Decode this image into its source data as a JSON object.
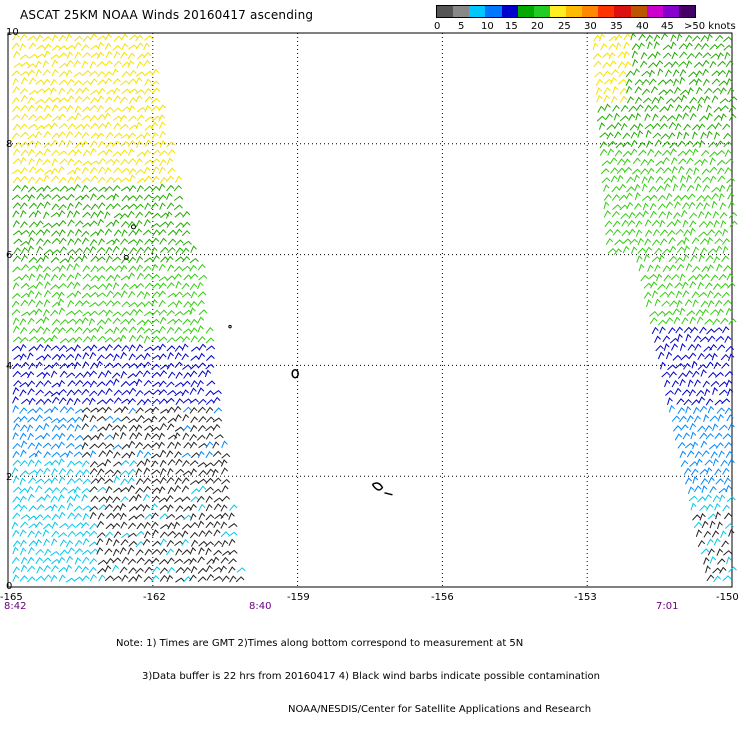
{
  "title": "ASCAT 25KM NOAA Winds 20160417 ascending",
  "scale": {
    "labels": [
      "0",
      "5",
      "10",
      "15",
      "20",
      "25",
      "30",
      "35",
      "40",
      "45",
      ">50 knots"
    ],
    "colors": [
      "#555555",
      "#888888",
      "#00c8ff",
      "#0077ff",
      "#0000cc",
      "#00aa00",
      "#22cc22",
      "#ffee22",
      "#ffbb00",
      "#ff8800",
      "#ff3300",
      "#dd1111",
      "#bb5500",
      "#cc00cc",
      "#8800cc",
      "#440066"
    ]
  },
  "lat_labels": [
    "10",
    "8",
    "6",
    "4",
    "2",
    "0"
  ],
  "lon_labels": [
    "-165",
    "-162",
    "-159",
    "-156",
    "-153",
    "-150"
  ],
  "times": [
    "8:42",
    "8:40",
    "7:01"
  ],
  "notes": {
    "line1": "Note: 1) Times are GMT 2)Times along bottom correspond to measurement at 5N",
    "line2": "3)Data buffer is 22 hrs from 20160417 4) Black wind barbs indicate possible contamination",
    "line3": "NOAA/NESDIS/Center for Satellite Applications and Research"
  },
  "map": {
    "lat_range": [
      0,
      10
    ],
    "lon_range": [
      -165,
      -150
    ],
    "swaths": [
      {
        "name": "west",
        "bands": [
          {
            "lat_from": 7.2,
            "lat_to": 10,
            "color": "#f5e200"
          },
          {
            "lat_from": 5.8,
            "lat_to": 7.2,
            "color": "#22aa00"
          },
          {
            "lat_from": 4.3,
            "lat_to": 5.8,
            "color": "#33cc11"
          },
          {
            "lat_from": 3.3,
            "lat_to": 4.3,
            "color": "#0000cc"
          },
          {
            "lat_from": 2.2,
            "lat_to": 3.3,
            "color": "#0088ff"
          },
          {
            "lat_from": 0,
            "lat_to": 2.2,
            "color": "#00c8ee"
          }
        ]
      },
      {
        "name": "east",
        "bands": [
          {
            "lat_from": 7.8,
            "lat_to": 10,
            "color": "#22aa00"
          },
          {
            "lat_from": 4.6,
            "lat_to": 7.8,
            "color": "#33cc11"
          },
          {
            "lat_from": 3.2,
            "lat_to": 4.6,
            "color": "#0000cc"
          },
          {
            "lat_from": 1.6,
            "lat_to": 3.2,
            "color": "#0088ff"
          },
          {
            "lat_from": 0,
            "lat_to": 1.6,
            "color": "#00c8ee"
          }
        ]
      }
    ]
  }
}
